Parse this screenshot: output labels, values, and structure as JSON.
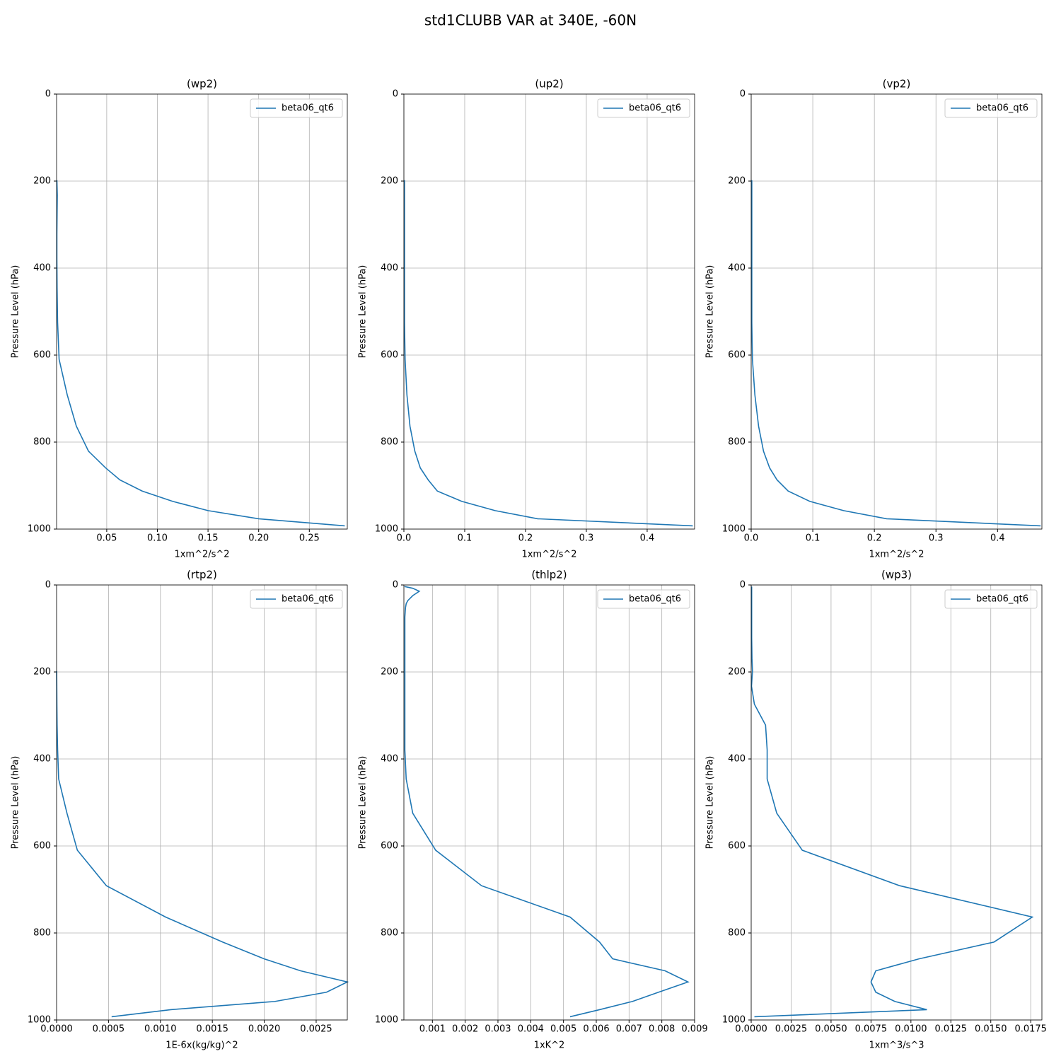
{
  "title": "std1CLUBB VAR at 340E, -60N",
  "chart_data": [
    {
      "type": "line",
      "title": "(wp2)",
      "xlabel": "1xm^2/s^2",
      "ylabel": "Pressure Level (hPa)",
      "y": [
        3.6,
        7.6,
        14.4,
        24.6,
        35.9,
        43.2,
        51.7,
        61.5,
        73.8,
        87.8,
        103.3,
        121.5,
        143.0,
        168.2,
        197.9,
        232.8,
        273.9,
        322.2,
        379.1,
        446.0,
        524.7,
        609.8,
        691.4,
        763.4,
        820.9,
        859.5,
        887.0,
        912.6,
        936.2,
        957.5,
        976.3,
        992.6
      ],
      "series": [
        {
          "name": "beta06_qt6",
          "color": "#1f77b4",
          "values": [
            null,
            null,
            null,
            null,
            null,
            null,
            null,
            null,
            null,
            null,
            null,
            null,
            null,
            null,
            0.0008,
            0.0012,
            0.001,
            0.0008,
            0.0008,
            0.001,
            0.0015,
            0.003,
            0.011,
            0.02,
            0.032,
            0.049,
            0.063,
            0.085,
            0.115,
            0.15,
            0.2,
            0.285
          ]
        }
      ],
      "xlim": [
        0.0005,
        0.2875
      ],
      "xticks": [
        0.05,
        {
          "value": 0.1,
          "label": "0.10"
        },
        0.15,
        {
          "value": 0.2,
          "label": "0.20"
        },
        0.25
      ],
      "ylim": [
        1000,
        0
      ],
      "yticks": [
        0,
        200,
        400,
        600,
        800,
        1000
      ],
      "grid": true,
      "legend": "upper right"
    },
    {
      "type": "line",
      "title": "(up2)",
      "xlabel": "1xm^2/s^2",
      "ylabel": "Pressure Level (hPa)",
      "y": [
        3.6,
        7.6,
        14.4,
        24.6,
        35.9,
        43.2,
        51.7,
        61.5,
        73.8,
        87.8,
        103.3,
        121.5,
        143.0,
        168.2,
        197.9,
        232.8,
        273.9,
        322.2,
        379.1,
        446.0,
        524.7,
        609.8,
        691.4,
        763.4,
        820.9,
        859.5,
        887.0,
        912.6,
        936.2,
        957.5,
        976.3,
        992.6
      ],
      "series": [
        {
          "name": "beta06_qt6",
          "color": "#1f77b4",
          "values": [
            null,
            null,
            null,
            null,
            null,
            null,
            null,
            null,
            null,
            null,
            null,
            null,
            null,
            null,
            0.001,
            0.001,
            0.001,
            0.001,
            0.001,
            0.001,
            0.001,
            0.002,
            0.005,
            0.01,
            0.018,
            0.027,
            0.04,
            0.055,
            0.095,
            0.15,
            0.22,
            0.475
          ]
        }
      ],
      "xlim": [
        0,
        0.478
      ],
      "xticks": [
        {
          "value": 0,
          "label": "0.0"
        },
        0.1,
        0.2,
        0.3,
        0.4
      ],
      "ylim": [
        1000,
        0
      ],
      "yticks": [
        0,
        200,
        400,
        600,
        800,
        1000
      ],
      "grid": true,
      "legend": "upper right"
    },
    {
      "type": "line",
      "title": "(vp2)",
      "xlabel": "1xm^2/s^2",
      "ylabel": "Pressure Level (hPa)",
      "y": [
        3.6,
        7.6,
        14.4,
        24.6,
        35.9,
        43.2,
        51.7,
        61.5,
        73.8,
        87.8,
        103.3,
        121.5,
        143.0,
        168.2,
        197.9,
        232.8,
        273.9,
        322.2,
        379.1,
        446.0,
        524.7,
        609.8,
        691.4,
        763.4,
        820.9,
        859.5,
        887.0,
        912.6,
        936.2,
        957.5,
        976.3,
        992.6
      ],
      "series": [
        {
          "name": "beta06_qt6",
          "color": "#1f77b4",
          "values": [
            null,
            null,
            null,
            null,
            null,
            null,
            null,
            null,
            null,
            null,
            null,
            null,
            null,
            null,
            0.001,
            0.001,
            0.001,
            0.001,
            0.001,
            0.001,
            0.001,
            0.002,
            0.006,
            0.012,
            0.02,
            0.03,
            0.042,
            0.06,
            0.095,
            0.15,
            0.22,
            0.47
          ]
        }
      ],
      "xlim": [
        0,
        0.472
      ],
      "xticks": [
        {
          "value": 0,
          "label": "0.0"
        },
        0.1,
        0.2,
        0.3,
        0.4
      ],
      "ylim": [
        1000,
        0
      ],
      "yticks": [
        0,
        200,
        400,
        600,
        800,
        1000
      ],
      "grid": true,
      "legend": "upper right"
    },
    {
      "type": "line",
      "title": "(rtp2)",
      "xlabel": "1E-6x(kg/kg)^2",
      "ylabel": "Pressure Level (hPa)",
      "y": [
        3.6,
        7.6,
        14.4,
        24.6,
        35.9,
        43.2,
        51.7,
        61.5,
        73.8,
        87.8,
        103.3,
        121.5,
        143.0,
        168.2,
        197.9,
        232.8,
        273.9,
        322.2,
        379.1,
        446.0,
        524.7,
        609.8,
        691.4,
        763.4,
        820.9,
        859.5,
        887.0,
        912.6,
        936.2,
        957.5,
        976.3,
        992.6
      ],
      "series": [
        {
          "name": "beta06_qt6",
          "color": "#1f77b4",
          "values": [
            null,
            null,
            null,
            null,
            null,
            null,
            null,
            null,
            null,
            null,
            null,
            null,
            null,
            null,
            1e-06,
            2e-06,
            3e-06,
            5e-06,
            1e-05,
            2e-05,
            0.0001,
            0.0002,
            0.00048,
            0.00105,
            0.0016,
            0.002,
            0.00235,
            0.0028,
            0.0026,
            0.0021,
            0.0011,
            0.00053
          ]
        }
      ],
      "xlim": [
        0,
        0.0028
      ],
      "xticks": [
        {
          "value": 0,
          "label": "0.0000"
        },
        {
          "value": 0.0005,
          "label": "0.0005"
        },
        {
          "value": 0.001,
          "label": "0.0010"
        },
        {
          "value": 0.0015,
          "label": "0.0015"
        },
        {
          "value": 0.002,
          "label": "0.0020"
        },
        {
          "value": 0.0025,
          "label": "0.0025"
        }
      ],
      "ylim": [
        1000,
        0
      ],
      "yticks": [
        0,
        200,
        400,
        600,
        800,
        1000
      ],
      "grid": true,
      "legend": "upper right"
    },
    {
      "type": "line",
      "title": "(thlp2)",
      "xlabel": "1xK^2",
      "ylabel": "Pressure Level (hPa)",
      "y": [
        3.6,
        7.6,
        14.4,
        24.6,
        35.9,
        43.2,
        51.7,
        61.5,
        73.8,
        87.8,
        103.3,
        121.5,
        143.0,
        168.2,
        197.9,
        232.8,
        273.9,
        322.2,
        379.1,
        446.0,
        524.7,
        609.8,
        691.4,
        763.4,
        820.9,
        859.5,
        887.0,
        912.6,
        936.2,
        957.5,
        976.3,
        992.6
      ],
      "series": [
        {
          "name": "beta06_qt6",
          "color": "#1f77b4",
          "values": [
            0.00015,
            0.0004,
            0.0006,
            0.0004,
            0.00025,
            0.0002,
            0.00018,
            0.00017,
            0.00016,
            0.00016,
            0.00016,
            0.00016,
            0.00016,
            0.00016,
            0.00016,
            0.00016,
            0.00016,
            0.00016,
            0.00016,
            0.0002,
            0.0004,
            0.0011,
            0.0025,
            0.0052,
            0.0061,
            0.0065,
            0.0081,
            0.0088,
            0.0079,
            0.0071,
            0.0061,
            0.0052
          ]
        }
      ],
      "xlim": [
        0.00013,
        0.009
      ],
      "xticks": [
        0.001,
        0.002,
        0.003,
        0.004,
        0.005,
        0.006,
        0.007,
        0.008,
        0.009
      ],
      "ylim": [
        1000,
        0
      ],
      "yticks": [
        0,
        200,
        400,
        600,
        800,
        1000
      ],
      "grid": true,
      "legend": "upper right"
    },
    {
      "type": "line",
      "title": "(wp3)",
      "xlabel": "1xm^3/s^3",
      "ylabel": "Pressure Level (hPa)",
      "y": [
        3.6,
        7.6,
        14.4,
        24.6,
        35.9,
        43.2,
        51.7,
        61.5,
        73.8,
        87.8,
        103.3,
        121.5,
        143.0,
        168.2,
        197.9,
        232.8,
        273.9,
        322.2,
        379.1,
        446.0,
        524.7,
        609.8,
        691.4,
        763.4,
        820.9,
        859.5,
        887.0,
        912.6,
        936.2,
        957.5,
        976.3,
        992.6
      ],
      "series": [
        {
          "name": "beta06_qt6",
          "color": "#1f77b4",
          "values": [
            3e-05,
            3e-05,
            3e-05,
            3e-05,
            3e-05,
            3e-05,
            3e-05,
            3e-05,
            3e-05,
            3e-05,
            3e-05,
            3e-05,
            4e-05,
            5e-05,
            8e-05,
            2e-05,
            0.0002,
            0.0009,
            0.001,
            0.001,
            0.0016,
            0.0032,
            0.0093,
            0.0176,
            0.0152,
            0.0105,
            0.0078,
            0.0075,
            0.0078,
            0.009,
            0.011,
            0.0002
          ]
        }
      ],
      "xlim": [
        0,
        0.0182
      ],
      "xticks": [
        {
          "value": 0,
          "label": "0.0000"
        },
        {
          "value": 0.0025,
          "label": "0.0025"
        },
        {
          "value": 0.005,
          "label": "0.0050"
        },
        {
          "value": 0.0075,
          "label": "0.0075"
        },
        {
          "value": 0.01,
          "label": "0.0100"
        },
        {
          "value": 0.0125,
          "label": "0.0125"
        },
        {
          "value": 0.015,
          "label": "0.0150"
        },
        {
          "value": 0.0175,
          "label": "0.0175"
        }
      ],
      "ylim": [
        1000,
        0
      ],
      "yticks": [
        0,
        200,
        400,
        600,
        800,
        1000
      ],
      "grid": true,
      "legend": "upper right"
    }
  ]
}
